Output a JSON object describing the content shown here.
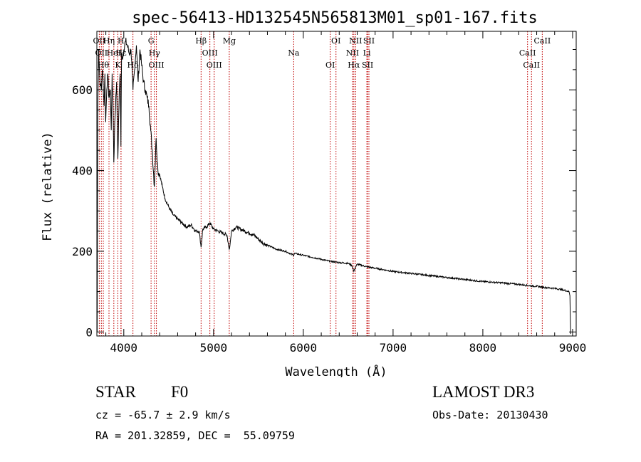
{
  "chart_data": {
    "type": "line",
    "title": "spec-56413-HD132545N565813M01_sp01-167.fits",
    "xlabel": "Wavelength (Å)",
    "ylabel": "Flux (relative)",
    "xlim": [
      3700,
      9040
    ],
    "ylim": [
      -10,
      745
    ],
    "x_ticks": [
      4000,
      5000,
      6000,
      7000,
      8000,
      9000
    ],
    "y_ticks": [
      0,
      200,
      400,
      600
    ],
    "series": [
      {
        "name": "spectrum",
        "x": [
          3700,
          3703,
          3710,
          3720,
          3730,
          3740,
          3750,
          3760,
          3770,
          3780,
          3790,
          3798,
          3810,
          3820,
          3835,
          3850,
          3860,
          3870,
          3880,
          3889,
          3900,
          3920,
          3934,
          3950,
          3960,
          3968,
          3975,
          3990,
          4000,
          4020,
          4040,
          4060,
          4080,
          4102,
          4120,
          4140,
          4160,
          4180,
          4200,
          4220,
          4240,
          4260,
          4280,
          4300,
          4320,
          4340,
          4360,
          4380,
          4400,
          4430,
          4460,
          4500,
          4550,
          4600,
          4650,
          4700,
          4750,
          4800,
          4840,
          4861,
          4880,
          4920,
          4960,
          5000,
          5050,
          5100,
          5150,
          5167,
          5175,
          5183,
          5200,
          5250,
          5300,
          5350,
          5400,
          5450,
          5500,
          5550,
          5600,
          5700,
          5800,
          5893,
          5900,
          6000,
          6100,
          6200,
          6300,
          6400,
          6500,
          6540,
          6563,
          6580,
          6600,
          6700,
          6800,
          6900,
          7000,
          7200,
          7400,
          7600,
          7800,
          8000,
          8200,
          8400,
          8500,
          8600,
          8700,
          8800,
          8900,
          8960,
          8970,
          8975,
          8980
        ],
        "values": [
          150,
          0,
          550,
          700,
          640,
          610,
          600,
          650,
          620,
          560,
          640,
          520,
          600,
          640,
          580,
          600,
          500,
          640,
          560,
          420,
          520,
          620,
          430,
          600,
          640,
          460,
          690,
          680,
          700,
          720,
          710,
          690,
          700,
          600,
          650,
          710,
          620,
          700,
          660,
          620,
          600,
          580,
          560,
          500,
          440,
          360,
          480,
          400,
          390,
          360,
          330,
          310,
          290,
          280,
          270,
          260,
          265,
          250,
          250,
          210,
          255,
          260,
          270,
          255,
          250,
          245,
          240,
          215,
          205,
          215,
          250,
          260,
          255,
          250,
          245,
          240,
          230,
          220,
          215,
          205,
          200,
          190,
          195,
          190,
          185,
          180,
          175,
          172,
          170,
          165,
          150,
          160,
          168,
          162,
          158,
          154,
          150,
          145,
          140,
          135,
          130,
          125,
          122,
          118,
          115,
          113,
          110,
          108,
          104,
          100,
          90,
          30,
          -5
        ]
      }
    ],
    "lines_top": [
      {
        "x": 3727,
        "label": "OII"
      },
      {
        "x": 3750,
        "label": "OII"
      },
      {
        "x": 3772,
        "label": "Hθ"
      },
      {
        "x": 3835,
        "label": "Hη"
      },
      {
        "x": 3889,
        "label": "HeI"
      },
      {
        "x": 3934,
        "label": "K"
      },
      {
        "x": 3968,
        "label": "H"
      },
      {
        "x": 3970,
        "label": "Hε"
      },
      {
        "x": 4102,
        "label": "Hδ"
      },
      {
        "x": 4304,
        "label": "G"
      },
      {
        "x": 4341,
        "label": "Hγ"
      },
      {
        "x": 4363,
        "label": "OIII"
      },
      {
        "x": 4861,
        "label": "Hβ"
      },
      {
        "x": 4959,
        "label": "OIII"
      },
      {
        "x": 5007,
        "label": "OIII"
      },
      {
        "x": 5175,
        "label": "Mg"
      },
      {
        "x": 5893,
        "label": "Na"
      },
      {
        "x": 6300,
        "label": "OI"
      },
      {
        "x": 6364,
        "label": "OI"
      },
      {
        "x": 6548,
        "label": "NII"
      },
      {
        "x": 6563,
        "label": "Hα"
      },
      {
        "x": 6583,
        "label": "NII"
      },
      {
        "x": 6708,
        "label": "Li"
      },
      {
        "x": 6716,
        "label": "SII"
      },
      {
        "x": 6731,
        "label": "SII"
      },
      {
        "x": 8498,
        "label": "CaII"
      },
      {
        "x": 8542,
        "label": "CaII"
      },
      {
        "x": 8662,
        "label": "CaII"
      }
    ]
  },
  "info": {
    "object_class": "STAR",
    "subclass": "F0",
    "survey": "LAMOST DR3",
    "cz": "cz = -65.7 ± 2.9 km/s",
    "obs_date": "Obs-Date: 20130430",
    "coords": "RA = 201.32859, DEC =  55.09759"
  },
  "colors": {
    "line": "#000000",
    "marker": "#c00000",
    "axis": "#000000"
  }
}
